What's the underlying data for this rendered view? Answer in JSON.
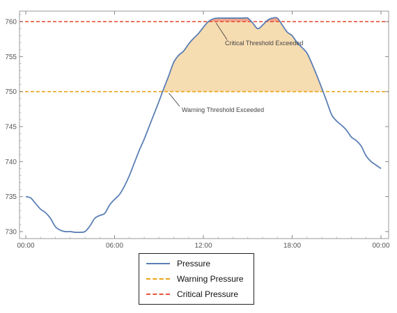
{
  "chart_data": {
    "type": "line",
    "x_unit": "time of day",
    "xlim": [
      "00:00",
      "24:00"
    ],
    "ylim": [
      729,
      761.5
    ],
    "x_ticks": [
      "00:00",
      "06:00",
      "12:00",
      "18:00",
      "00:00"
    ],
    "y_ticks": [
      730,
      735,
      740,
      745,
      750,
      755,
      760
    ],
    "grid": false,
    "legend_position": "bottom-center",
    "series": [
      {
        "name": "Pressure",
        "color": "#5b7fb5",
        "style": "solid",
        "x": [
          "00:00",
          "00:20",
          "00:40",
          "01:00",
          "01:20",
          "01:40",
          "02:00",
          "02:20",
          "02:40",
          "03:00",
          "03:20",
          "03:40",
          "04:00",
          "04:20",
          "04:40",
          "05:00",
          "05:20",
          "05:40",
          "06:00",
          "06:20",
          "06:40",
          "07:00",
          "07:20",
          "07:40",
          "08:00",
          "08:20",
          "08:40",
          "09:00",
          "09:20",
          "09:40",
          "10:00",
          "10:20",
          "10:40",
          "11:00",
          "11:20",
          "11:40",
          "12:00",
          "12:20",
          "12:40",
          "13:00",
          "13:20",
          "13:40",
          "14:00",
          "14:20",
          "14:40",
          "15:00",
          "15:20",
          "15:40",
          "16:00",
          "16:20",
          "16:40",
          "17:00",
          "17:20",
          "17:40",
          "18:00",
          "18:20",
          "18:40",
          "19:00",
          "19:20",
          "19:40",
          "20:00",
          "20:20",
          "20:40",
          "21:00",
          "21:20",
          "21:40",
          "22:00",
          "22:20",
          "22:40",
          "23:00",
          "23:20",
          "23:40",
          "24:00"
        ],
        "values": [
          735.0,
          734.8,
          734.0,
          733.2,
          732.7,
          731.9,
          730.7,
          730.2,
          730.0,
          730.0,
          729.9,
          729.9,
          730.0,
          730.8,
          731.9,
          732.3,
          732.6,
          733.8,
          734.6,
          735.3,
          736.5,
          738.0,
          739.8,
          741.6,
          743.2,
          745.0,
          746.8,
          748.6,
          750.5,
          752.3,
          754.2,
          755.2,
          755.8,
          756.8,
          757.6,
          758.3,
          759.2,
          760.0,
          760.4,
          760.5,
          760.5,
          760.5,
          760.5,
          760.5,
          760.5,
          760.5,
          759.8,
          759.0,
          759.5,
          760.2,
          760.5,
          760.5,
          759.5,
          758.5,
          758.0,
          757.0,
          756.3,
          755.5,
          754.0,
          752.3,
          750.5,
          748.6,
          746.7,
          745.8,
          745.2,
          744.5,
          743.5,
          743.0,
          742.2,
          740.8,
          740.0,
          739.5,
          739.0
        ]
      },
      {
        "name": "Warning Pressure",
        "color": "#e8a316",
        "style": "dashed",
        "value": 750
      },
      {
        "name": "Critical Pressure",
        "color": "#e8533a",
        "style": "dashed",
        "value": 760
      }
    ],
    "annotations": [
      {
        "text": "Critical Threshold Exceeded",
        "x": "13:00",
        "y": 760
      },
      {
        "text": "Warning Threshold Exceeded",
        "x": "09:40",
        "y": 750
      }
    ],
    "fill_colors": {
      "warning": "#f5d8a8",
      "critical": "#f0a08a"
    }
  }
}
